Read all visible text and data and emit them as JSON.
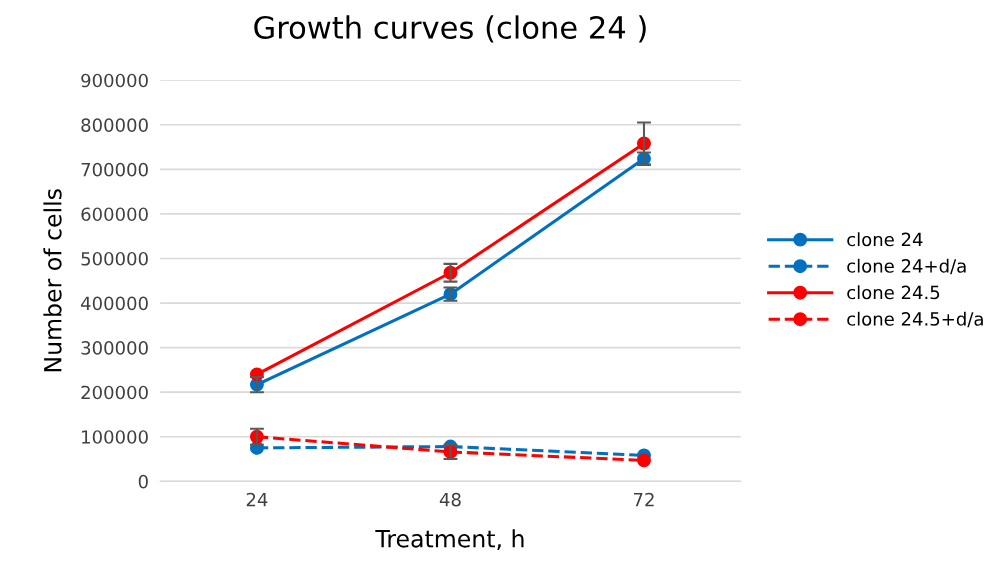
{
  "chart_data": {
    "type": "line",
    "title": "Growth curves (clone 24 )",
    "xlabel": "Treatment, h",
    "ylabel": "Number of cells",
    "categories": [
      "24",
      "48",
      "72"
    ],
    "ylim": [
      0,
      900000
    ],
    "yticks": [
      0,
      100000,
      200000,
      300000,
      400000,
      500000,
      600000,
      700000,
      800000,
      900000
    ],
    "grid": "y",
    "legend": "right",
    "marker": "circle",
    "series": [
      {
        "name": "clone 24",
        "color": "#0070c0",
        "line_style": "solid",
        "values": [
          217000,
          420000,
          724000
        ],
        "errors": [
          17000,
          15000,
          14000
        ]
      },
      {
        "name": "clone 24+d/a",
        "color": "#0070c0",
        "line_style": "dashed",
        "values": [
          75000,
          78000,
          58000
        ],
        "errors": [
          null,
          null,
          null
        ]
      },
      {
        "name": "clone 24.5",
        "color": "#ff0000",
        "line_style": "solid",
        "values": [
          240000,
          468000,
          758000
        ],
        "errors": [
          null,
          20000,
          47000
        ]
      },
      {
        "name": "clone 24.5+d/a",
        "color": "#ff0000",
        "line_style": "dashed",
        "values": [
          100000,
          66000,
          47000
        ],
        "errors": [
          18000,
          16000,
          null
        ]
      }
    ]
  }
}
